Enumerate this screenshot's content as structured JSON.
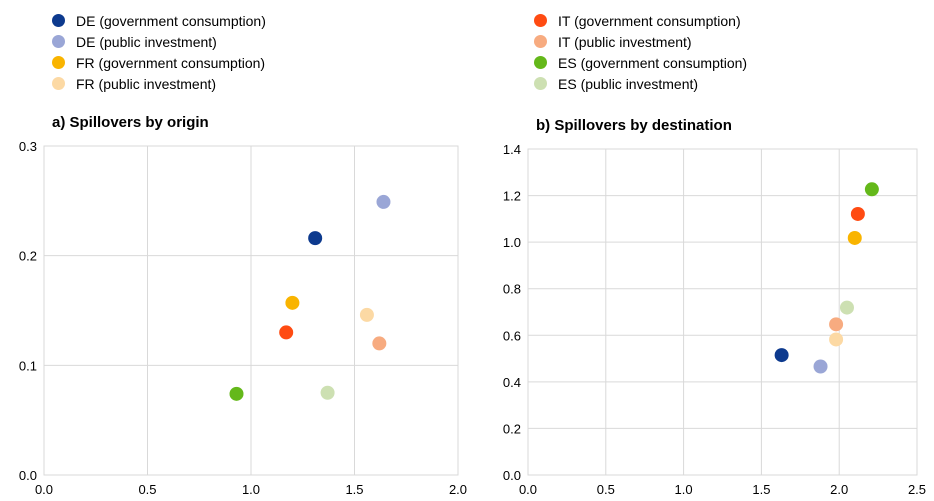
{
  "legend": [
    {
      "label": "DE (government consumption)",
      "color": "#0d3a8e"
    },
    {
      "label": "DE (public investment)",
      "color": "#9aa6d6"
    },
    {
      "label": "FR (government consumption)",
      "color": "#f9b400"
    },
    {
      "label": "FR (public investment)",
      "color": "#fcd9a4"
    },
    {
      "label": "IT (government consumption)",
      "color": "#ff4b12"
    },
    {
      "label": "IT (public investment)",
      "color": "#f7ab80"
    },
    {
      "label": "ES (government consumption)",
      "color": "#64b81a"
    },
    {
      "label": "ES (public investment)",
      "color": "#cde0b2"
    }
  ],
  "chart_data": [
    {
      "type": "scatter",
      "title": "a) Spillovers by origin",
      "xlim": [
        0,
        2.0
      ],
      "ylim": [
        0,
        0.3
      ],
      "x_ticks": [
        "0.0",
        "0.5",
        "1.0",
        "1.5",
        "2.0"
      ],
      "y_ticks": [
        "0.0",
        "0.1",
        "0.2",
        "0.3"
      ],
      "grid": true,
      "points": [
        {
          "series": "DE (government consumption)",
          "x": 1.31,
          "y": 0.216
        },
        {
          "series": "DE (public investment)",
          "x": 1.64,
          "y": 0.249
        },
        {
          "series": "FR (government consumption)",
          "x": 1.2,
          "y": 0.157
        },
        {
          "series": "FR (public investment)",
          "x": 1.56,
          "y": 0.146
        },
        {
          "series": "IT (government consumption)",
          "x": 1.17,
          "y": 0.13
        },
        {
          "series": "IT (public investment)",
          "x": 1.62,
          "y": 0.12
        },
        {
          "series": "ES (government consumption)",
          "x": 0.93,
          "y": 0.074
        },
        {
          "series": "ES (public investment)",
          "x": 1.37,
          "y": 0.075
        }
      ]
    },
    {
      "type": "scatter",
      "title": "b) Spillovers by destination",
      "xlim": [
        0,
        2.5
      ],
      "ylim": [
        0,
        1.4
      ],
      "x_ticks": [
        "0.0",
        "0.5",
        "1.0",
        "1.5",
        "2.0",
        "2.5"
      ],
      "y_ticks": [
        "0.0",
        "0.2",
        "0.4",
        "0.6",
        "0.8",
        "1.0",
        "1.2",
        "1.4"
      ],
      "grid": true,
      "points": [
        {
          "series": "DE (government consumption)",
          "x": 1.63,
          "y": 0.515
        },
        {
          "series": "DE (public investment)",
          "x": 1.88,
          "y": 0.466
        },
        {
          "series": "FR (government consumption)",
          "x": 2.1,
          "y": 1.018
        },
        {
          "series": "FR (public investment)",
          "x": 1.98,
          "y": 0.582
        },
        {
          "series": "IT (government consumption)",
          "x": 2.12,
          "y": 1.121
        },
        {
          "series": "IT (public investment)",
          "x": 1.98,
          "y": 0.647
        },
        {
          "series": "ES (government consumption)",
          "x": 2.21,
          "y": 1.227
        },
        {
          "series": "ES (public investment)",
          "x": 2.05,
          "y": 0.719
        }
      ]
    }
  ]
}
